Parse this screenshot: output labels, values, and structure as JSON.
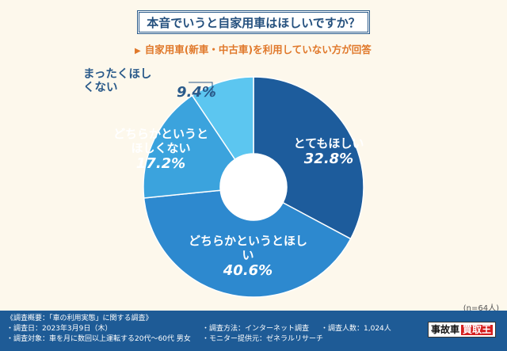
{
  "title": "本音でいうと自家用車はほしいですか？",
  "subtitle": "自家用車(新車・中古車)を利用していない方が回答",
  "sample_size": "(n=64人)",
  "chart_data": {
    "type": "pie",
    "donut": true,
    "title": "本音でいうと自家用車はほしいですか？",
    "categories": [
      "とてもほしい",
      "どちらかというとほしい",
      "どちらかというとほしくない",
      "まったくほしくない"
    ],
    "values": [
      32.8,
      40.6,
      17.2,
      9.4
    ],
    "value_labels": [
      "32.8%",
      "40.6%",
      "17.2%",
      "9.4%"
    ],
    "colors": [
      "#1d5c9c",
      "#2d89cf",
      "#3ba3dd",
      "#5cc6f0"
    ],
    "start": "12 o'clock",
    "direction": "clockwise"
  },
  "footer": {
    "overview": "《調査概要：「車の利用実態」に関する調査》",
    "date": "・調査日：2023年3月9日（木）",
    "target": "・調査対象：車を月に数回以上運転する20代～60代 男女",
    "method": "・調査方法：インターネット調査",
    "provider": "・モニター提供元：ゼネラルリサーチ",
    "count": "・調査人数：1,024人",
    "logo_a": "事故車",
    "logo_b": "買取王"
  }
}
